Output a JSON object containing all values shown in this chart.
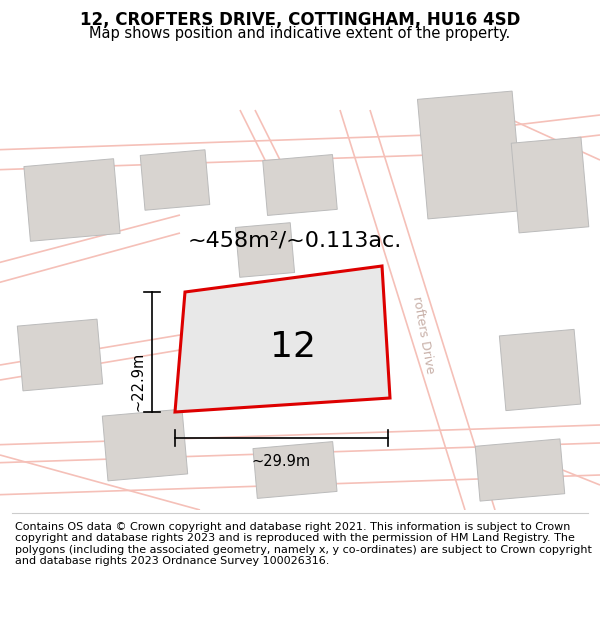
{
  "title": "12, CROFTERS DRIVE, COTTINGHAM, HU16 4SD",
  "subtitle": "Map shows position and indicative extent of the property.",
  "area_label": "~458m²/~0.113ac.",
  "plot_number": "12",
  "dim_width": "~29.9m",
  "dim_height": "~22.9m",
  "footer": "Contains OS data © Crown copyright and database right 2021. This information is subject to Crown copyright and database rights 2023 and is reproduced with the permission of HM Land Registry. The polygons (including the associated geometry, namely x, y co-ordinates) are subject to Crown copyright and database rights 2023 Ordnance Survey 100026316.",
  "map_bg": "#f8f8f8",
  "road_color": "#f5c0b8",
  "road_lw": 1.2,
  "plot_fill": "#e8e8e8",
  "plot_edge": "#dd0000",
  "plot_edge_lw": 2.2,
  "building_fill": "#d8d4d0",
  "building_edge": "#bbbbbb",
  "building_edge_lw": 0.7,
  "title_fontsize": 12,
  "subtitle_fontsize": 10.5,
  "area_fontsize": 16,
  "plot_num_fontsize": 26,
  "footer_fontsize": 8,
  "dim_fontsize": 10.5,
  "road_label_fontsize": 9,
  "road_label_color": "#c8b0a8"
}
